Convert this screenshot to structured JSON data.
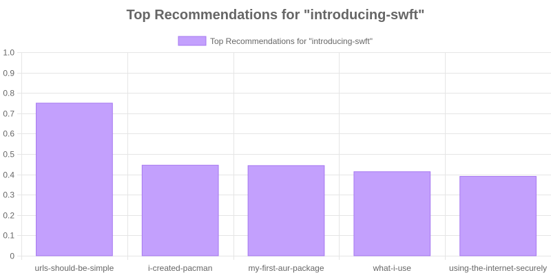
{
  "chart_data": {
    "type": "bar",
    "title": "Top Recommendations for \"introducing-swft\"",
    "xlabel": "",
    "ylabel": "",
    "categories": [
      "urls-should-be-simple",
      "i-created-pacman",
      "my-first-aur-package",
      "what-i-use",
      "using-the-internet-securely"
    ],
    "series": [
      {
        "name": "Top Recommendations for \"introducing-swft\"",
        "values": [
          0.75,
          0.445,
          0.443,
          0.413,
          0.39
        ]
      }
    ],
    "ylim": [
      0,
      1.0
    ],
    "yticks": [
      "0",
      "0.1",
      "0.2",
      "0.3",
      "0.4",
      "0.5",
      "0.6",
      "0.7",
      "0.8",
      "0.9",
      "1.0"
    ],
    "grid": true,
    "legend_position": "top",
    "colors": {
      "bar_fill": "#c3a0fd",
      "bar_border": "#a577f0",
      "grid": "#e5e5e5",
      "text": "#666666"
    }
  }
}
